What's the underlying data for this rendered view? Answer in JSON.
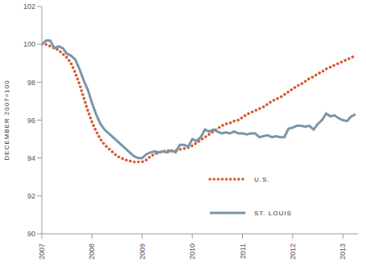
{
  "chart_data": {
    "type": "line",
    "y_label": "DECEMBER 2007=100",
    "x": [
      2007,
      2007.083,
      2007.167,
      2007.25,
      2007.333,
      2007.417,
      2007.5,
      2007.583,
      2007.667,
      2007.75,
      2007.833,
      2007.917,
      2008,
      2008.083,
      2008.167,
      2008.25,
      2008.333,
      2008.417,
      2008.5,
      2008.583,
      2008.667,
      2008.75,
      2008.833,
      2008.917,
      2009,
      2009.083,
      2009.167,
      2009.25,
      2009.333,
      2009.417,
      2009.5,
      2009.583,
      2009.667,
      2009.75,
      2009.833,
      2009.917,
      2010,
      2010.083,
      2010.167,
      2010.25,
      2010.333,
      2010.417,
      2010.5,
      2010.583,
      2010.667,
      2010.75,
      2010.833,
      2010.917,
      2011,
      2011.083,
      2011.167,
      2011.25,
      2011.333,
      2011.417,
      2011.5,
      2011.583,
      2011.667,
      2011.75,
      2011.833,
      2011.917,
      2012,
      2012.083,
      2012.167,
      2012.25,
      2012.333,
      2012.417,
      2012.5,
      2012.583,
      2012.667,
      2012.75,
      2012.833,
      2012.917,
      2013,
      2013.083,
      2013.167,
      2013.25
    ],
    "series": [
      {
        "name": "U.S.",
        "color": "#d65a2e",
        "line_style": "dotted",
        "values": [
          100.0,
          100.0,
          99.9,
          99.8,
          99.7,
          99.5,
          99.3,
          99.0,
          98.5,
          97.9,
          97.2,
          96.5,
          95.9,
          95.4,
          95.0,
          94.7,
          94.5,
          94.3,
          94.1,
          94.0,
          93.9,
          93.85,
          93.8,
          93.8,
          93.8,
          93.9,
          94.1,
          94.2,
          94.3,
          94.35,
          94.4,
          94.35,
          94.4,
          94.45,
          94.5,
          94.55,
          94.65,
          94.8,
          94.95,
          95.1,
          95.25,
          95.4,
          95.55,
          95.7,
          95.8,
          95.85,
          95.95,
          96.0,
          96.15,
          96.3,
          96.4,
          96.5,
          96.6,
          96.7,
          96.85,
          97.0,
          97.1,
          97.2,
          97.35,
          97.5,
          97.65,
          97.8,
          97.9,
          98.05,
          98.2,
          98.3,
          98.45,
          98.55,
          98.7,
          98.8,
          98.9,
          99.0,
          99.1,
          99.2,
          99.3,
          99.4
        ]
      },
      {
        "name": "ST. LOUIS",
        "color": "#7896aa",
        "line_style": "solid",
        "values": [
          100.0,
          100.2,
          100.2,
          99.8,
          99.9,
          99.8,
          99.5,
          99.4,
          99.2,
          98.7,
          98.1,
          97.6,
          96.9,
          96.3,
          95.8,
          95.5,
          95.3,
          95.1,
          94.9,
          94.7,
          94.5,
          94.3,
          94.1,
          94.0,
          94.0,
          94.2,
          94.3,
          94.35,
          94.3,
          94.35,
          94.3,
          94.4,
          94.3,
          94.7,
          94.7,
          94.6,
          95.0,
          94.9,
          95.1,
          95.5,
          95.4,
          95.5,
          95.4,
          95.3,
          95.35,
          95.3,
          95.4,
          95.3,
          95.3,
          95.25,
          95.3,
          95.3,
          95.1,
          95.15,
          95.2,
          95.1,
          95.15,
          95.1,
          95.1,
          95.55,
          95.6,
          95.7,
          95.7,
          95.65,
          95.7,
          95.5,
          95.8,
          96.0,
          96.35,
          96.2,
          96.25,
          96.1,
          96.0,
          95.95,
          96.2,
          96.3
        ]
      }
    ],
    "xlim": [
      2007,
      2013.3
    ],
    "xticks": [
      2007,
      2008,
      2009,
      2010,
      2011,
      2012,
      2013
    ],
    "ylim": [
      90,
      102
    ],
    "yticks": [
      90,
      92,
      94,
      96,
      98,
      100,
      102
    ],
    "grid": false
  }
}
